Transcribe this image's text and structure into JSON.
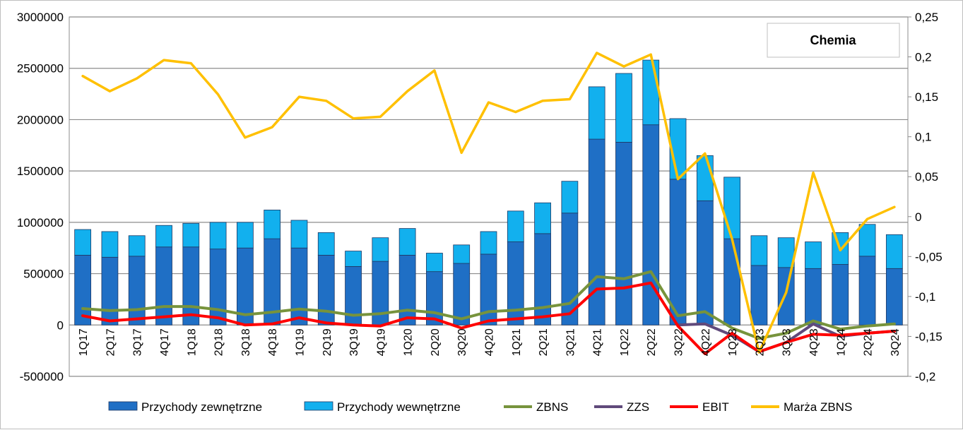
{
  "chart_data": {
    "type": "bar",
    "title": "Chemia",
    "categories": [
      "1Q17",
      "2Q17",
      "3Q17",
      "4Q17",
      "1Q18",
      "2Q18",
      "3Q18",
      "4Q18",
      "1Q19",
      "2Q19",
      "3Q19",
      "4Q19",
      "1Q20",
      "2Q20",
      "3Q20",
      "4Q20",
      "1Q21",
      "2Q21",
      "3Q21",
      "4Q21",
      "1Q22",
      "2Q22",
      "3Q22",
      "4Q22",
      "1Q23",
      "2Q23",
      "3Q23",
      "4Q23",
      "1Q24",
      "2Q24",
      "3Q24"
    ],
    "y_left": {
      "min": -500000,
      "max": 3000000,
      "step": 500000,
      "ticks": [
        "-500000",
        "0",
        "500000",
        "1000000",
        "1500000",
        "2000000",
        "2500000",
        "3000000"
      ]
    },
    "y_right": {
      "min": -0.2,
      "max": 0.25,
      "step": 0.05,
      "ticks": [
        "-0,2",
        "-0,15",
        "-0,1",
        "-0,05",
        "0",
        "0,05",
        "0,1",
        "0,15",
        "0,2",
        "0,25"
      ]
    },
    "grid": true,
    "legend_position": "bottom",
    "series": [
      {
        "name": "Przychody zewnętrzne",
        "kind": "bar",
        "stack": "rev",
        "axis": "left",
        "color": "#1f6fc5",
        "values": [
          680000,
          660000,
          670000,
          760000,
          760000,
          740000,
          750000,
          840000,
          750000,
          680000,
          570000,
          620000,
          680000,
          520000,
          600000,
          690000,
          810000,
          890000,
          1090000,
          1810000,
          1780000,
          1950000,
          1420000,
          1210000,
          840000,
          580000,
          560000,
          550000,
          590000,
          670000,
          550000
        ]
      },
      {
        "name": "Przychody wewnętrzne",
        "kind": "bar",
        "stack": "rev",
        "axis": "left",
        "color": "#12b0ee",
        "values": [
          250000,
          250000,
          200000,
          210000,
          230000,
          260000,
          250000,
          280000,
          270000,
          220000,
          150000,
          230000,
          260000,
          180000,
          180000,
          220000,
          300000,
          300000,
          310000,
          510000,
          670000,
          630000,
          590000,
          440000,
          600000,
          290000,
          290000,
          260000,
          310000,
          310000,
          330000
        ]
      },
      {
        "name": "ZBNS",
        "kind": "line",
        "axis": "left",
        "color": "#77933c",
        "values": [
          160000,
          140000,
          150000,
          180000,
          180000,
          150000,
          100000,
          125000,
          155000,
          135000,
          95000,
          110000,
          145000,
          120000,
          60000,
          130000,
          145000,
          170000,
          210000,
          470000,
          450000,
          520000,
          90000,
          130000,
          -30000,
          -130000,
          -80000,
          40000,
          -40000,
          -10000,
          10000
        ]
      },
      {
        "name": "ZZS",
        "kind": "line",
        "axis": "left",
        "color": "#604a7b",
        "values": [
          null,
          null,
          null,
          null,
          null,
          null,
          null,
          null,
          null,
          null,
          null,
          null,
          null,
          null,
          null,
          null,
          null,
          null,
          null,
          null,
          null,
          null,
          0,
          10000,
          -100000,
          -260000,
          -170000,
          10000,
          -110000,
          -80000,
          -60000
        ]
      },
      {
        "name": "EBIT",
        "kind": "line",
        "axis": "left",
        "color": "#ff0000",
        "values": [
          90000,
          40000,
          60000,
          80000,
          100000,
          70000,
          0,
          10000,
          70000,
          20000,
          0,
          -10000,
          70000,
          60000,
          -30000,
          40000,
          60000,
          80000,
          110000,
          350000,
          360000,
          410000,
          -10000,
          -280000,
          -80000,
          -260000,
          -170000,
          -90000,
          -100000,
          -80000,
          -60000
        ]
      },
      {
        "name": "Marża ZBNS",
        "kind": "line",
        "axis": "right",
        "color": "#ffc000",
        "values": [
          0.176,
          0.157,
          0.173,
          0.196,
          0.192,
          0.153,
          0.099,
          0.112,
          0.15,
          0.145,
          0.123,
          0.125,
          0.157,
          0.183,
          0.08,
          0.143,
          0.131,
          0.145,
          0.147,
          0.205,
          0.188,
          0.203,
          0.047,
          0.079,
          -0.028,
          -0.17,
          -0.095,
          0.055,
          -0.042,
          -0.003,
          0.012
        ]
      }
    ]
  }
}
